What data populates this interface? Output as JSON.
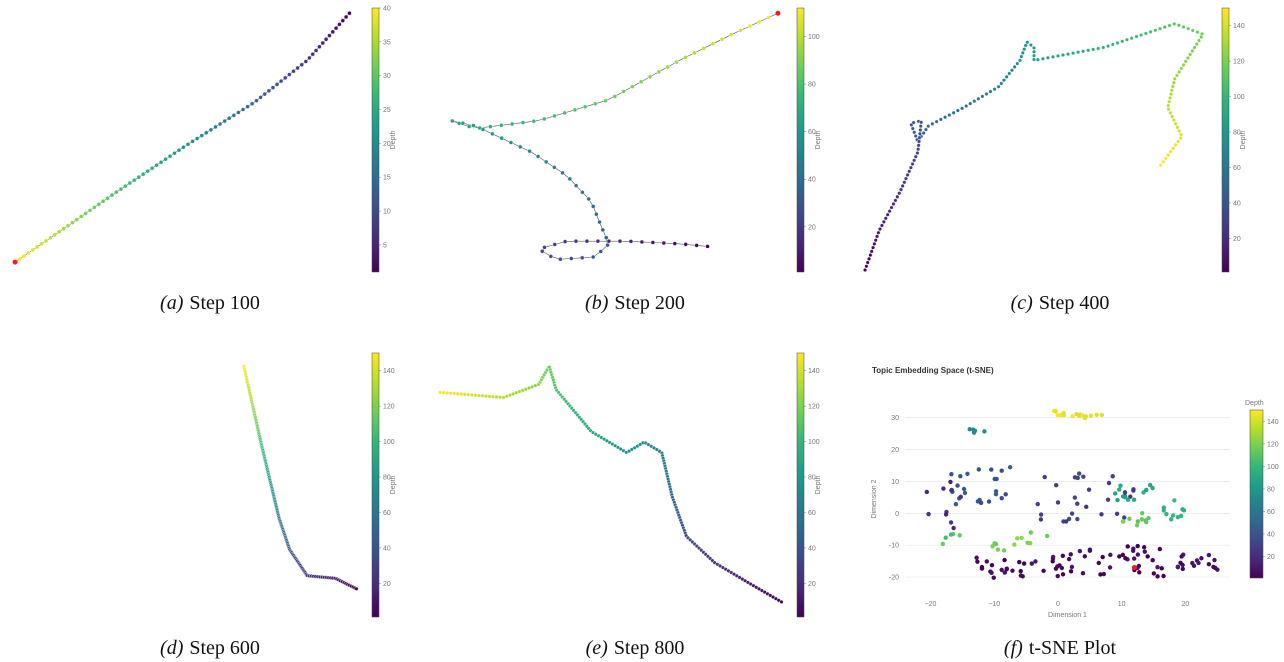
{
  "colors": {
    "viridis": [
      "#440154",
      "#482878",
      "#3e4989",
      "#31688e",
      "#26828e",
      "#1f9e89",
      "#35b779",
      "#6ece58",
      "#b5de2b",
      "#fde725"
    ],
    "endpoint": "#ff1a1a",
    "line": "#555555",
    "grid": "#e8e8e8"
  },
  "captions": [
    {
      "tag": "(a)",
      "text": "Step 100"
    },
    {
      "tag": "(b)",
      "text": "Step 200"
    },
    {
      "tag": "(c)",
      "text": "Step 400"
    },
    {
      "tag": "(d)",
      "text": "Step 600"
    },
    {
      "tag": "(e)",
      "text": "Step 800"
    },
    {
      "tag": "(f)",
      "text": "t-SNE Plot"
    }
  ],
  "chart_data": [
    {
      "type": "scatter",
      "caption": "Step 100",
      "colorbar": {
        "title": "Depth",
        "range": [
          1,
          40
        ],
        "ticks": [
          "5",
          "10",
          "15",
          "20",
          "25",
          "30",
          "35",
          "40"
        ]
      },
      "path": [
        [
          0.02,
          0.97
        ],
        [
          0.15,
          0.85
        ],
        [
          0.3,
          0.71
        ],
        [
          0.5,
          0.53
        ],
        [
          0.7,
          0.36
        ],
        [
          0.85,
          0.2
        ],
        [
          0.97,
          0.02
        ]
      ],
      "connected": true,
      "endpoint": "start"
    },
    {
      "type": "scatter",
      "caption": "Step 200",
      "colorbar": {
        "title": "Depth",
        "range": [
          1,
          112
        ],
        "ticks": [
          "20",
          "40",
          "60",
          "80",
          "100"
        ]
      },
      "path": [
        [
          0.98,
          0.02
        ],
        [
          0.85,
          0.1
        ],
        [
          0.7,
          0.2
        ],
        [
          0.5,
          0.35
        ],
        [
          0.3,
          0.43
        ],
        [
          0.12,
          0.46
        ],
        [
          0.05,
          0.43
        ],
        [
          0.12,
          0.45
        ],
        [
          0.28,
          0.55
        ],
        [
          0.38,
          0.64
        ],
        [
          0.45,
          0.74
        ],
        [
          0.48,
          0.84
        ],
        [
          0.5,
          0.9
        ],
        [
          0.46,
          0.95
        ],
        [
          0.35,
          0.96
        ],
        [
          0.3,
          0.92
        ],
        [
          0.38,
          0.89
        ],
        [
          0.55,
          0.89
        ],
        [
          0.7,
          0.9
        ],
        [
          0.78,
          0.91
        ]
      ],
      "connected": true,
      "endpoint": "start"
    },
    {
      "type": "scatter",
      "caption": "Step 400",
      "colorbar": {
        "title": "Depth",
        "range": [
          1,
          150
        ],
        "ticks": [
          "20",
          "40",
          "60",
          "80",
          "100",
          "120",
          "140"
        ]
      },
      "path": [
        [
          0.86,
          0.6
        ],
        [
          0.92,
          0.49
        ],
        [
          0.88,
          0.38
        ],
        [
          0.9,
          0.27
        ],
        [
          0.98,
          0.1
        ],
        [
          0.9,
          0.06
        ],
        [
          0.7,
          0.15
        ],
        [
          0.5,
          0.2
        ],
        [
          0.5,
          0.15
        ],
        [
          0.48,
          0.13
        ],
        [
          0.46,
          0.2
        ],
        [
          0.4,
          0.3
        ],
        [
          0.3,
          0.38
        ],
        [
          0.2,
          0.45
        ],
        [
          0.17,
          0.51
        ],
        [
          0.15,
          0.44
        ],
        [
          0.18,
          0.43
        ],
        [
          0.17,
          0.55
        ],
        [
          0.12,
          0.7
        ],
        [
          0.06,
          0.85
        ],
        [
          0.02,
          1.0
        ]
      ],
      "connected": false,
      "endpoint": "none"
    },
    {
      "type": "scatter",
      "caption": "Step 600",
      "colorbar": {
        "title": "Depth",
        "range": [
          1,
          150
        ],
        "ticks": [
          "20",
          "40",
          "60",
          "80",
          "100",
          "120",
          "140"
        ]
      },
      "path": [
        [
          0.67,
          0.05
        ],
        [
          0.72,
          0.35
        ],
        [
          0.77,
          0.63
        ],
        [
          0.8,
          0.75
        ],
        [
          0.85,
          0.85
        ],
        [
          0.93,
          0.86
        ],
        [
          0.99,
          0.9
        ]
      ],
      "connected": false,
      "endpoint": "none"
    },
    {
      "type": "scatter",
      "caption": "Step 800",
      "colorbar": {
        "title": "Depth",
        "range": [
          1,
          150
        ],
        "ticks": [
          "20",
          "40",
          "60",
          "80",
          "100",
          "120",
          "140"
        ]
      },
      "path": [
        [
          0.02,
          0.15
        ],
        [
          0.2,
          0.17
        ],
        [
          0.3,
          0.12
        ],
        [
          0.33,
          0.05
        ],
        [
          0.35,
          0.14
        ],
        [
          0.45,
          0.3
        ],
        [
          0.55,
          0.38
        ],
        [
          0.6,
          0.34
        ],
        [
          0.65,
          0.38
        ],
        [
          0.68,
          0.55
        ],
        [
          0.72,
          0.7
        ],
        [
          0.8,
          0.8
        ],
        [
          0.9,
          0.88
        ],
        [
          0.99,
          0.95
        ]
      ],
      "connected": false,
      "endpoint": "none"
    },
    {
      "type": "scatter",
      "caption": "t-SNE Plot",
      "title": "Topic Embedding Space (t-SNE)",
      "xlabel": "Dimension 1",
      "ylabel": "Dimension 2",
      "xlim": [
        -24,
        27
      ],
      "ylim": [
        -25,
        34
      ],
      "xticks": [
        -20,
        -10,
        0,
        10,
        20
      ],
      "yticks": [
        -20,
        -10,
        0,
        10,
        20,
        30
      ],
      "colorbar": {
        "title": "Depth",
        "range": [
          1,
          150
        ],
        "ticks": [
          "20",
          "40",
          "60",
          "80",
          "100",
          "120",
          "140"
        ]
      },
      "endpoint_xy": [
        12,
        -17
      ],
      "clusters": [
        {
          "cx": 3,
          "cy": 31,
          "sx": 2.5,
          "sy": 0.8,
          "n": 18,
          "depth": 145
        },
        {
          "cx": -13,
          "cy": 26,
          "sx": 1,
          "sy": 0.5,
          "n": 6,
          "depth": 75
        },
        {
          "cx": -12,
          "cy": 9,
          "sx": 3,
          "sy": 4,
          "n": 25,
          "depth": 40
        },
        {
          "cx": 4,
          "cy": 5,
          "sx": 5,
          "sy": 5,
          "n": 30,
          "depth": 30
        },
        {
          "cx": 12,
          "cy": 6,
          "sx": 2,
          "sy": 2,
          "n": 12,
          "depth": 90
        },
        {
          "cx": 12,
          "cy": -2,
          "sx": 1.5,
          "sy": 1.5,
          "n": 10,
          "depth": 115
        },
        {
          "cx": 19,
          "cy": 1,
          "sx": 1.5,
          "sy": 2,
          "n": 10,
          "depth": 100
        },
        {
          "cx": -17,
          "cy": -8,
          "sx": 1,
          "sy": 1,
          "n": 5,
          "depth": 110
        },
        {
          "cx": -6,
          "cy": -8,
          "sx": 3,
          "sy": 3,
          "n": 12,
          "depth": 120
        },
        {
          "cx": -8,
          "cy": -17,
          "sx": 3,
          "sy": 2,
          "n": 22,
          "depth": 5
        },
        {
          "cx": 7,
          "cy": -15,
          "sx": 6,
          "sy": 3,
          "n": 50,
          "depth": 5
        },
        {
          "cx": 22,
          "cy": -15,
          "sx": 2,
          "sy": 2,
          "n": 18,
          "depth": 8
        },
        {
          "cx": -18,
          "cy": 3,
          "sx": 2,
          "sy": 5,
          "n": 10,
          "depth": 20
        }
      ]
    }
  ]
}
